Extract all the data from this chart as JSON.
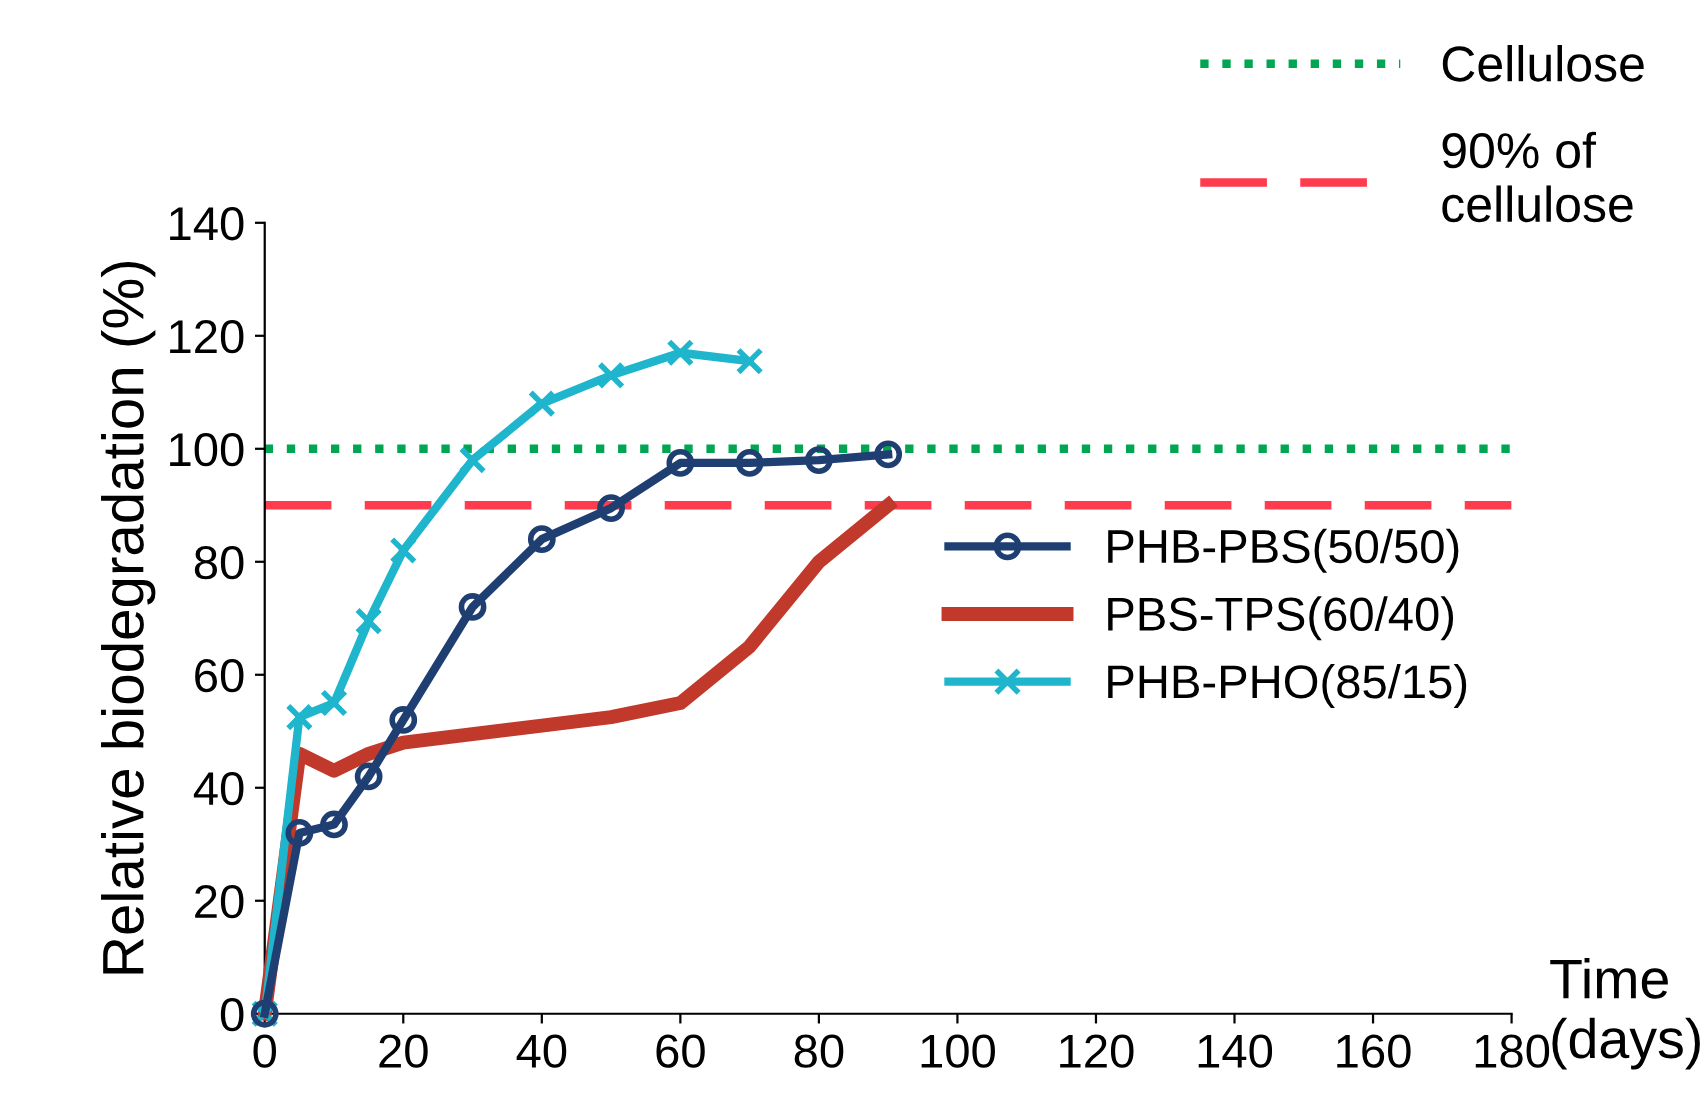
{
  "chart_data": {
    "type": "line",
    "xlabel": "Time (days)",
    "ylabel": "Relative biodegradation (%)",
    "xlim": [
      0,
      180
    ],
    "xticks": [
      0,
      20,
      40,
      60,
      80,
      100,
      120,
      140,
      160,
      180
    ],
    "ylim": [
      0,
      140
    ],
    "yticks": [
      0,
      20,
      40,
      60,
      80,
      100,
      120,
      140
    ],
    "grid": false,
    "legend": "center right",
    "series": [
      {
        "name": "PHB-PBS(50/50)",
        "color": "#1f3f73",
        "marker": "circle",
        "x": [
          0,
          5,
          10,
          15,
          20,
          30,
          40,
          50,
          60,
          70,
          80,
          90
        ],
        "values": [
          0,
          32,
          33.5,
          42,
          52,
          72,
          84,
          89.5,
          97.5,
          97.5,
          98,
          99
        ]
      },
      {
        "name": "PBS-TPS(60/40)",
        "color": "#c0392b",
        "marker": "none",
        "x": [
          0,
          5,
          10,
          15,
          20,
          40,
          50,
          60,
          70,
          80,
          90
        ],
        "values": [
          0,
          46,
          43,
          46,
          48,
          51,
          52.5,
          55,
          65,
          80,
          90
        ]
      },
      {
        "name": "PHB-PHO(85/15)",
        "color": "#1fb5cc",
        "marker": "cross",
        "x": [
          0,
          5,
          10,
          15,
          20,
          30,
          40,
          50,
          60,
          70
        ],
        "values": [
          0,
          52.5,
          55,
          69.5,
          82,
          98,
          108,
          113,
          117,
          115.5
        ]
      }
    ],
    "ref_lines": [
      {
        "axis": "y",
        "value": 100,
        "label": "Cellulose",
        "color": "#00a651",
        "line_style": "dotted"
      },
      {
        "axis": "y",
        "value": 90,
        "label": "90% of\ncellulose",
        "color": "#ff3b4e",
        "line_style": "dashed"
      }
    ]
  }
}
